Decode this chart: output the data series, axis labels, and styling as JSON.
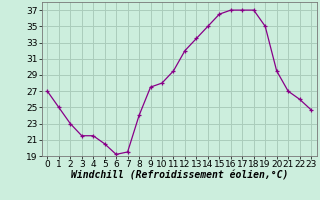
{
  "x": [
    0,
    1,
    2,
    3,
    4,
    5,
    6,
    7,
    8,
    9,
    10,
    11,
    12,
    13,
    14,
    15,
    16,
    17,
    18,
    19,
    20,
    21,
    22,
    23
  ],
  "y": [
    27,
    25,
    23,
    21.5,
    21.5,
    20.5,
    19.2,
    19.5,
    24,
    27.5,
    28,
    29.5,
    32,
    33.5,
    35,
    36.5,
    37,
    37,
    37,
    35,
    29.5,
    27,
    26,
    24.7
  ],
  "line_color": "#880088",
  "marker": "+",
  "background_color": "#cceedd",
  "grid_color": "#aaccbb",
  "xlabel": "Windchill (Refroidissement éolien,°C)",
  "xlabel_fontsize": 7,
  "tick_fontsize": 6.5,
  "ylim": [
    19,
    38
  ],
  "yticks": [
    19,
    21,
    23,
    25,
    27,
    29,
    31,
    33,
    35,
    37
  ],
  "xticks": [
    0,
    1,
    2,
    3,
    4,
    5,
    6,
    7,
    8,
    9,
    10,
    11,
    12,
    13,
    14,
    15,
    16,
    17,
    18,
    19,
    20,
    21,
    22,
    23
  ],
  "xlim": [
    -0.5,
    23.5
  ]
}
